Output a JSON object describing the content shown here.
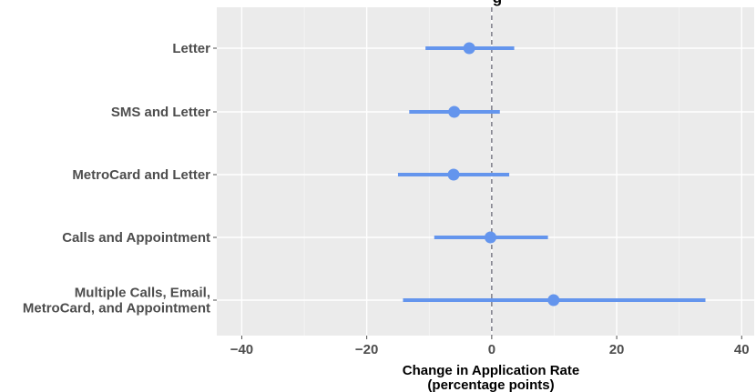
{
  "chart_data": {
    "type": "scatter",
    "subtype": "coefficient-plot",
    "title_fragment": "g",
    "xlabel_lines": [
      "Change in Application Rate",
      "(percentage points)"
    ],
    "ylabel": "",
    "xlim": [
      -44,
      42
    ],
    "xticks": [
      -40,
      -20,
      0,
      20,
      40
    ],
    "xtick_labels": [
      "−40",
      "−20",
      "0",
      "20",
      "40"
    ],
    "reference_line": 0,
    "grid": true,
    "point_color": "#6495ED",
    "panel_color": "#EBEBEB",
    "categories": [
      {
        "label": [
          "Letter"
        ],
        "estimate": -3.6,
        "ci_low": -10.6,
        "ci_high": 3.6
      },
      {
        "label": [
          "SMS and Letter"
        ],
        "estimate": -6.0,
        "ci_low": -13.2,
        "ci_high": 1.3
      },
      {
        "label": [
          "MetroCard and Letter"
        ],
        "estimate": -6.1,
        "ci_low": -15.0,
        "ci_high": 2.8
      },
      {
        "label": [
          "Calls and Appointment"
        ],
        "estimate": -0.2,
        "ci_low": -9.2,
        "ci_high": 9.0
      },
      {
        "label": [
          "Multiple Calls, Email,",
          "MetroCard, and Appointment"
        ],
        "estimate": 9.9,
        "ci_low": -14.2,
        "ci_high": 34.2
      }
    ]
  }
}
